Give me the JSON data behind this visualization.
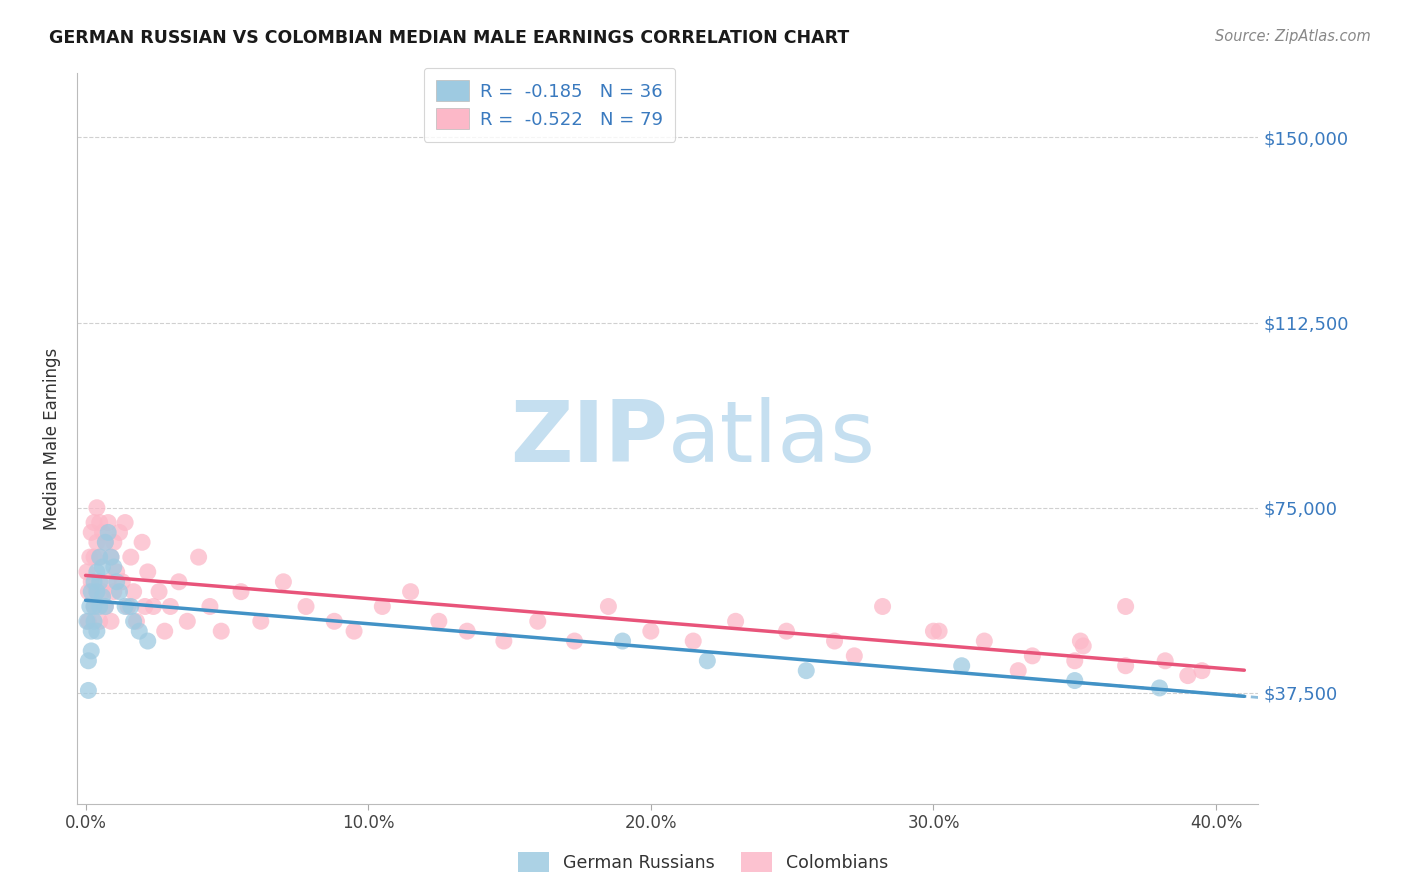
{
  "title": "GERMAN RUSSIAN VS COLOMBIAN MEDIAN MALE EARNINGS CORRELATION CHART",
  "source": "Source: ZipAtlas.com",
  "ylabel": "Median Male Earnings",
  "ytick_labels": [
    "$37,500",
    "$75,000",
    "$112,500",
    "$150,000"
  ],
  "ytick_values": [
    37500,
    75000,
    112500,
    150000
  ],
  "ymin": 15000,
  "ymax": 163000,
  "xmin": -0.003,
  "xmax": 0.415,
  "german_russian_R": -0.185,
  "german_russian_N": 36,
  "colombian_R": -0.522,
  "colombian_N": 79,
  "german_russian_color": "#9ecae1",
  "colombian_color": "#fcb8c8",
  "trendline_blue": "#4292c6",
  "trendline_pink": "#e8547a",
  "legend_text_color": "#3a7abf",
  "watermark_zip_color": "#c5dff0",
  "watermark_atlas_color": "#c5dff0",
  "background_color": "#ffffff",
  "grid_color": "#d0d0d0",
  "german_russian_x": [
    0.0005,
    0.001,
    0.001,
    0.0015,
    0.002,
    0.002,
    0.002,
    0.003,
    0.003,
    0.003,
    0.004,
    0.004,
    0.004,
    0.005,
    0.005,
    0.005,
    0.006,
    0.006,
    0.007,
    0.007,
    0.008,
    0.009,
    0.01,
    0.011,
    0.012,
    0.014,
    0.016,
    0.017,
    0.019,
    0.022,
    0.19,
    0.22,
    0.255,
    0.31,
    0.35,
    0.38
  ],
  "german_russian_y": [
    52000,
    44000,
    38000,
    55000,
    58000,
    50000,
    46000,
    60000,
    55000,
    52000,
    62000,
    58000,
    50000,
    65000,
    60000,
    55000,
    63000,
    57000,
    68000,
    55000,
    70000,
    65000,
    63000,
    60000,
    58000,
    55000,
    55000,
    52000,
    50000,
    48000,
    48000,
    44000,
    42000,
    43000,
    40000,
    38500
  ],
  "colombian_x": [
    0.0005,
    0.001,
    0.001,
    0.0015,
    0.002,
    0.002,
    0.003,
    0.003,
    0.003,
    0.004,
    0.004,
    0.004,
    0.005,
    0.005,
    0.005,
    0.006,
    0.006,
    0.007,
    0.007,
    0.008,
    0.008,
    0.009,
    0.009,
    0.01,
    0.01,
    0.011,
    0.012,
    0.013,
    0.014,
    0.015,
    0.016,
    0.017,
    0.018,
    0.02,
    0.021,
    0.022,
    0.024,
    0.026,
    0.028,
    0.03,
    0.033,
    0.036,
    0.04,
    0.044,
    0.048,
    0.055,
    0.062,
    0.07,
    0.078,
    0.088,
    0.095,
    0.105,
    0.115,
    0.125,
    0.135,
    0.148,
    0.16,
    0.173,
    0.185,
    0.2,
    0.215,
    0.23,
    0.248,
    0.265,
    0.282,
    0.3,
    0.318,
    0.335,
    0.352,
    0.368,
    0.382,
    0.353,
    0.33,
    0.302,
    0.272,
    0.35,
    0.395,
    0.368,
    0.39
  ],
  "colombian_y": [
    62000,
    58000,
    52000,
    65000,
    70000,
    60000,
    72000,
    65000,
    55000,
    75000,
    68000,
    58000,
    72000,
    65000,
    52000,
    70000,
    58000,
    68000,
    55000,
    72000,
    60000,
    65000,
    52000,
    68000,
    58000,
    62000,
    70000,
    60000,
    72000,
    55000,
    65000,
    58000,
    52000,
    68000,
    55000,
    62000,
    55000,
    58000,
    50000,
    55000,
    60000,
    52000,
    65000,
    55000,
    50000,
    58000,
    52000,
    60000,
    55000,
    52000,
    50000,
    55000,
    58000,
    52000,
    50000,
    48000,
    52000,
    48000,
    55000,
    50000,
    48000,
    52000,
    50000,
    48000,
    55000,
    50000,
    48000,
    45000,
    48000,
    55000,
    44000,
    47000,
    42000,
    50000,
    45000,
    44000,
    42000,
    43000,
    41000
  ]
}
